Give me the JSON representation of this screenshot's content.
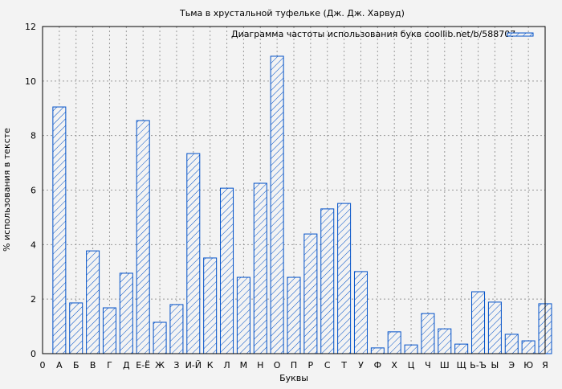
{
  "chart_data": {
    "type": "bar",
    "title": "Тьма в хрустальной туфельке (Дж. Дж. Харвуд)",
    "xlabel": "Буквы",
    "ylabel": "% использования в тексте",
    "legend": "Диаграмма частоты использования букв coollib.net/b/588707",
    "legend_position": "top-right",
    "x_tick_zero": "0",
    "categories": [
      "А",
      "Б",
      "В",
      "Г",
      "Д",
      "Е-Ё",
      "Ж",
      "З",
      "И-Й",
      "К",
      "Л",
      "М",
      "Н",
      "О",
      "П",
      "Р",
      "С",
      "Т",
      "У",
      "Ф",
      "Х",
      "Ц",
      "Ч",
      "Ш",
      "Щ",
      "Ь-Ъ",
      "Ы",
      "Э",
      "Ю",
      "Я"
    ],
    "values": [
      9.05,
      1.86,
      3.77,
      1.68,
      2.95,
      8.55,
      1.15,
      1.8,
      7.34,
      3.51,
      6.07,
      2.8,
      6.25,
      10.91,
      2.8,
      4.39,
      5.31,
      5.51,
      3.01,
      0.21,
      0.8,
      0.32,
      1.47,
      0.91,
      0.35,
      2.27,
      1.89,
      0.71,
      0.47,
      1.83
    ],
    "yticks": [
      "0",
      "2",
      "4",
      "6",
      "8",
      "10",
      "12"
    ],
    "ylim": [
      0,
      12
    ],
    "xlim": [
      0,
      30
    ],
    "grid": true,
    "bar_color": "#0050c8"
  }
}
